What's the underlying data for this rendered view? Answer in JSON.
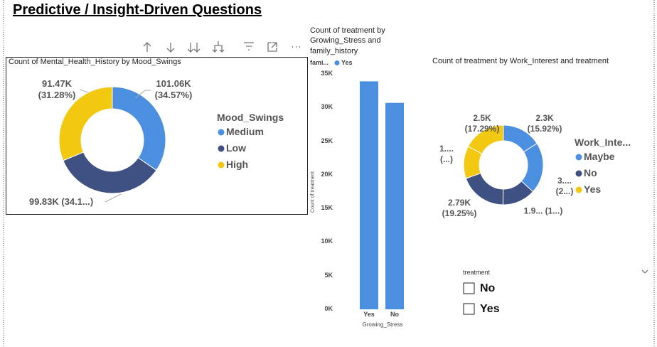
{
  "page_title": "Predictive / Insight-Driven Questions",
  "chart_data": [
    {
      "type": "donut",
      "title": "Count of Mental_Health_History by Mood_Swings",
      "legend_title": "Mood_Swings",
      "categories": [
        "Medium",
        "Low",
        "High"
      ],
      "values": [
        101060,
        99830,
        91470
      ],
      "value_labels": [
        "101.06K\n(34.57%)",
        "99.83K (34.1...)",
        "91.47K\n(31.28%)"
      ],
      "colors": [
        "#4a8fe0",
        "#3f5183",
        "#f2c811"
      ]
    },
    {
      "type": "bar",
      "title": "Count of treatment by Growing_Stress and family_history",
      "legend_title": "fami...",
      "categories": [
        "Yes",
        "No"
      ],
      "x_label": "Growing_Stress",
      "y_label": "Count of treatment",
      "series": [
        {
          "name": "Yes",
          "color": "#4a8fe0",
          "values": [
            33900,
            30700
          ]
        }
      ],
      "ylim": [
        0,
        35000
      ],
      "yticks": [
        {
          "value": 0,
          "label": "0K"
        },
        {
          "value": 5000,
          "label": "5K"
        },
        {
          "value": 10000,
          "label": "10K"
        },
        {
          "value": 15000,
          "label": "15K"
        },
        {
          "value": 20000,
          "label": "20K"
        },
        {
          "value": 25000,
          "label": "25K"
        },
        {
          "value": 30000,
          "label": "30K"
        },
        {
          "value": 35000,
          "label": "35K"
        }
      ]
    },
    {
      "type": "grouped-donut",
      "title": "Count of treatment by Work_Interest and treatment",
      "legend_title": "Work_Inte...",
      "series": [
        {
          "name": "Maybe",
          "color": "#4a8fe0",
          "values": [
            2300,
            3000
          ],
          "value_labels": [
            "2.3K\n(15.92%)",
            "3....\n(2...)"
          ]
        },
        {
          "name": "No",
          "color": "#3f5183",
          "values": [
            1950,
            2790
          ],
          "value_labels": [
            "1.9... (1...)",
            "2.79K\n(19.25%)"
          ]
        },
        {
          "name": "Yes",
          "color": "#f2c811",
          "values": [
            1910,
            2500
          ],
          "value_labels": [
            "1....\n(...)",
            "2.5K\n(17.29%)"
          ]
        }
      ]
    }
  ],
  "slicer": {
    "title": "treatment",
    "options": [
      "No",
      "Yes"
    ]
  }
}
